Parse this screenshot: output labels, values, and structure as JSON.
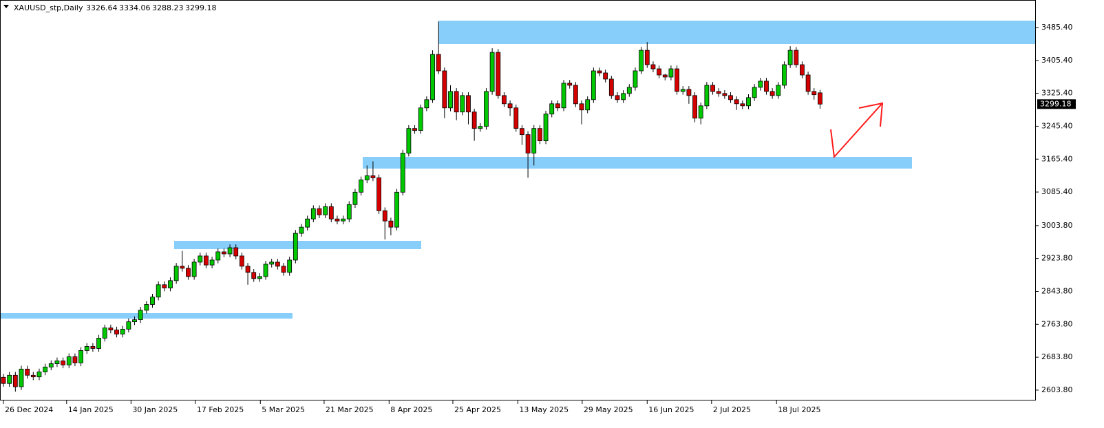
{
  "chart_data": {
    "type": "candlestick",
    "title": "XAUUSD_stp,Daily",
    "open": [
      2635,
      2620,
      2640,
      2612,
      2655,
      2640,
      2636,
      2648,
      2660,
      2668,
      2675,
      2665,
      2685,
      2670,
      2700,
      2710,
      2705,
      2730,
      2755,
      2750,
      2740,
      2752,
      2770,
      2775,
      2798,
      2812,
      2830,
      2860,
      2852,
      2870,
      2905,
      2900,
      2880,
      2915,
      2930,
      2908,
      2920,
      2940,
      2935,
      2950,
      2930,
      2905,
      2890,
      2875,
      2880,
      2910,
      2915,
      2905,
      2890,
      2920,
      2985,
      3000,
      3020,
      3045,
      3030,
      3050,
      3020,
      3015,
      3020,
      3055,
      3085,
      3115,
      3125,
      3120,
      3040,
      3015,
      3000,
      3085,
      3180,
      3240,
      3235,
      3290,
      3310,
      3420,
      3380,
      3290,
      3330,
      3280,
      3320,
      3280,
      3240,
      3245,
      3330,
      3425,
      3320,
      3300,
      3290,
      3240,
      3225,
      3180,
      3240,
      3210,
      3275,
      3300,
      3290,
      3350,
      3345,
      3300,
      3285,
      3310,
      3380,
      3375,
      3360,
      3320,
      3310,
      3325,
      3340,
      3380,
      3430,
      3395,
      3385,
      3370,
      3365,
      3385,
      3330,
      3335,
      3320,
      3265,
      3295,
      3345,
      3330,
      3325,
      3320,
      3310,
      3300,
      3295,
      3315,
      3340,
      3355,
      3330,
      3320,
      3345,
      3395,
      3430,
      3395,
      3370,
      3330,
      3326.64
    ],
    "high": [
      2643,
      2648,
      2648,
      2663,
      2663,
      2648,
      2656,
      2668,
      2676,
      2683,
      2683,
      2693,
      2693,
      2708,
      2718,
      2718,
      2738,
      2763,
      2763,
      2758,
      2760,
      2778,
      2783,
      2806,
      2820,
      2838,
      2868,
      2868,
      2878,
      2913,
      2942,
      2908,
      2923,
      2938,
      2938,
      2928,
      2948,
      2948,
      2958,
      2958,
      2938,
      2913,
      2898,
      2888,
      2918,
      2923,
      2923,
      2913,
      2928,
      2993,
      3008,
      3028,
      3053,
      3053,
      3058,
      3058,
      3028,
      3028,
      3063,
      3093,
      3123,
      3150,
      3160,
      3128,
      3048,
      3023,
      3093,
      3188,
      3248,
      3248,
      3298,
      3318,
      3430,
      3500,
      3388,
      3345,
      3338,
      3328,
      3328,
      3288,
      3253,
      3338,
      3435,
      3433,
      3328,
      3308,
      3298,
      3248,
      3233,
      3248,
      3248,
      3283,
      3308,
      3308,
      3358,
      3358,
      3353,
      3308,
      3318,
      3388,
      3388,
      3383,
      3368,
      3328,
      3333,
      3348,
      3388,
      3438,
      3450,
      3403,
      3393,
      3373,
      3393,
      3393,
      3343,
      3343,
      3328,
      3303,
      3353,
      3353,
      3338,
      3333,
      3328,
      3318,
      3308,
      3323,
      3348,
      3363,
      3363,
      3338,
      3353,
      3403,
      3440,
      3438,
      3403,
      3378,
      3338,
      3334.06
    ],
    "low": [
      2612,
      2612,
      2600,
      2604,
      2632,
      2628,
      2628,
      2640,
      2652,
      2660,
      2657,
      2657,
      2662,
      2662,
      2692,
      2697,
      2697,
      2722,
      2742,
      2732,
      2732,
      2744,
      2762,
      2767,
      2790,
      2804,
      2822,
      2844,
      2844,
      2862,
      2892,
      2872,
      2872,
      2907,
      2900,
      2900,
      2912,
      2927,
      2927,
      2922,
      2897,
      2860,
      2867,
      2867,
      2872,
      2902,
      2897,
      2882,
      2882,
      2912,
      2977,
      2992,
      3012,
      3022,
      3022,
      3012,
      3007,
      3007,
      3012,
      3047,
      3077,
      3107,
      3112,
      3032,
      2970,
      2980,
      2992,
      3077,
      3172,
      3227,
      3227,
      3282,
      3302,
      3372,
      3265,
      3282,
      3260,
      3272,
      3250,
      3210,
      3232,
      3237,
      3322,
      3312,
      3292,
      3270,
      3232,
      3200,
      3120,
      3150,
      3202,
      3202,
      3267,
      3282,
      3282,
      3337,
      3292,
      3250,
      3277,
      3302,
      3367,
      3352,
      3312,
      3302,
      3302,
      3317,
      3332,
      3372,
      3387,
      3377,
      3362,
      3357,
      3357,
      3322,
      3322,
      3300,
      3255,
      3250,
      3287,
      3322,
      3317,
      3312,
      3302,
      3285,
      3287,
      3287,
      3307,
      3332,
      3322,
      3312,
      3312,
      3337,
      3387,
      3387,
      3362,
      3322,
      3310,
      3288.23
    ],
    "close": [
      2620,
      2640,
      2612,
      2655,
      2640,
      2636,
      2648,
      2660,
      2668,
      2675,
      2665,
      2685,
      2670,
      2700,
      2710,
      2705,
      2730,
      2755,
      2750,
      2740,
      2752,
      2770,
      2775,
      2798,
      2812,
      2830,
      2860,
      2852,
      2870,
      2905,
      2900,
      2880,
      2915,
      2930,
      2908,
      2920,
      2940,
      2935,
      2950,
      2930,
      2905,
      2890,
      2875,
      2880,
      2910,
      2915,
      2905,
      2890,
      2920,
      2985,
      3000,
      3020,
      3045,
      3030,
      3050,
      3020,
      3015,
      3020,
      3055,
      3085,
      3115,
      3125,
      3120,
      3040,
      3015,
      3000,
      3085,
      3180,
      3240,
      3235,
      3290,
      3310,
      3420,
      3380,
      3290,
      3330,
      3280,
      3320,
      3280,
      3240,
      3245,
      3330,
      3425,
      3320,
      3300,
      3290,
      3240,
      3225,
      3180,
      3240,
      3210,
      3275,
      3300,
      3290,
      3350,
      3345,
      3300,
      3285,
      3310,
      3380,
      3375,
      3360,
      3320,
      3310,
      3325,
      3340,
      3380,
      3430,
      3395,
      3385,
      3370,
      3365,
      3385,
      3330,
      3335,
      3320,
      3265,
      3295,
      3345,
      3330,
      3325,
      3320,
      3310,
      3300,
      3295,
      3315,
      3340,
      3355,
      3330,
      3320,
      3345,
      3395,
      3430,
      3395,
      3370,
      3330,
      3322,
      3299.18
    ],
    "up_color": "#00c800",
    "down_color": "#d40000",
    "ylim": [
      2578.6,
      3552.3
    ],
    "yticks": [
      {
        "value": 2603.8,
        "label": "2603.80"
      },
      {
        "value": 2683.8,
        "label": "2683.80"
      },
      {
        "value": 2763.8,
        "label": "2763.80"
      },
      {
        "value": 2843.8,
        "label": "2843.80"
      },
      {
        "value": 2923.8,
        "label": "2923.80"
      },
      {
        "value": 3003.8,
        "label": "3003.80"
      },
      {
        "value": 3085.4,
        "label": "3085.40"
      },
      {
        "value": 3165.4,
        "label": "3165.40"
      },
      {
        "value": 3245.4,
        "label": "3245.40"
      },
      {
        "value": 3325.4,
        "label": "3325.40"
      },
      {
        "value": 3405.4,
        "label": "3405.40"
      },
      {
        "value": 3485.4,
        "label": "3485.40"
      }
    ],
    "xticks": [
      {
        "value": 0,
        "label": "26 Dec 2024"
      },
      {
        "value": 10.6,
        "label": "14 Jan 2025"
      },
      {
        "value": 21.4,
        "label": "30 Jan 2025"
      },
      {
        "value": 32.2,
        "label": "17 Feb 2025"
      },
      {
        "value": 43.1,
        "label": "5 Mar 2025"
      },
      {
        "value": 53.8,
        "label": "21 Mar 2025"
      },
      {
        "value": 64.7,
        "label": "8 Apr 2025"
      },
      {
        "value": 75.4,
        "label": "25 Apr 2025"
      },
      {
        "value": 86.3,
        "label": "13 May 2025"
      },
      {
        "value": 97.1,
        "label": "29 May 2025"
      },
      {
        "value": 108,
        "label": "16 Jun 2025"
      },
      {
        "value": 118.8,
        "label": "2 Jul 2025"
      },
      {
        "value": 129.7,
        "label": "18 Jul 2025"
      }
    ]
  }
}
